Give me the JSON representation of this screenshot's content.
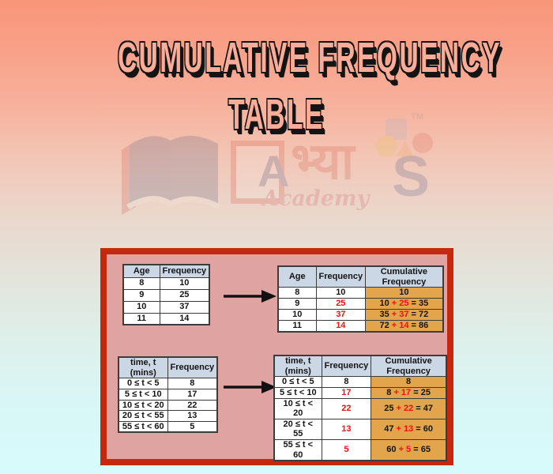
{
  "title": {
    "line1": "CUMULATIVE FREQUENCY",
    "line2": "TABLE"
  },
  "watermark": {
    "letter_a": "A",
    "devanagari": "भ्या",
    "letter_s": "S",
    "academy": "Academy",
    "tm": "TM"
  },
  "tables": [
    {
      "name": "age-frequency-table",
      "headers": [
        "Age",
        "Frequency"
      ],
      "rows": [
        [
          "8",
          "10"
        ],
        [
          "9",
          "25"
        ],
        [
          "10",
          "37"
        ],
        [
          "11",
          "14"
        ]
      ]
    },
    {
      "name": "age-cumulative-frequency-table",
      "headers": [
        "Age",
        "Frequency",
        "Cumulative\nFrequency"
      ],
      "rows": [
        [
          "8",
          "10",
          {
            "bg": true,
            "parts": [
              {
                "t": "10"
              }
            ]
          }
        ],
        [
          "9",
          {
            "red": true,
            "t": "25"
          },
          {
            "bg": true,
            "parts": [
              {
                "t": "10 "
              },
              {
                "t": "+ 25",
                "red": true
              },
              {
                "t": " = 35"
              }
            ]
          }
        ],
        [
          "10",
          {
            "red": true,
            "t": "37"
          },
          {
            "bg": true,
            "parts": [
              {
                "t": "35 "
              },
              {
                "t": "+ 37",
                "red": true
              },
              {
                "t": " = 72"
              }
            ]
          }
        ],
        [
          "11",
          {
            "red": true,
            "t": "14"
          },
          {
            "bg": true,
            "parts": [
              {
                "t": "72 "
              },
              {
                "t": "+ 14",
                "red": true
              },
              {
                "t": " = 86"
              }
            ]
          }
        ]
      ]
    },
    {
      "name": "time-frequency-table",
      "headers": [
        "time, t\n(mins)",
        "Frequency"
      ],
      "rows": [
        [
          "0 ≤ t < 5",
          "8"
        ],
        [
          "5 ≤ t < 10",
          "17"
        ],
        [
          "10 ≤ t < 20",
          "22"
        ],
        [
          "20 ≤ t < 55",
          "13"
        ],
        [
          "55 ≤ t < 60",
          "5"
        ]
      ]
    },
    {
      "name": "time-cumulative-frequency-table",
      "headers": [
        "time, t\n(mins)",
        "Frequency",
        "Cumulative\nFrequency"
      ],
      "rows": [
        [
          "0 ≤ t < 5",
          "8",
          {
            "bg": true,
            "parts": [
              {
                "t": "8"
              }
            ]
          }
        ],
        [
          "5 ≤ t < 10",
          {
            "red": true,
            "t": "17"
          },
          {
            "bg": true,
            "parts": [
              {
                "t": "8 "
              },
              {
                "t": "+ 17",
                "red": true
              },
              {
                "t": " = 25"
              }
            ]
          }
        ],
        [
          "10 ≤ t < 20",
          {
            "red": true,
            "t": "22"
          },
          {
            "bg": true,
            "parts": [
              {
                "t": "25 "
              },
              {
                "t": "+ 22",
                "red": true
              },
              {
                "t": " = 47"
              }
            ]
          }
        ],
        [
          "20 ≤ t < 55",
          {
            "red": true,
            "t": "13"
          },
          {
            "bg": true,
            "parts": [
              {
                "t": "47 "
              },
              {
                "t": "+ 13",
                "red": true
              },
              {
                "t": " = 60"
              }
            ]
          }
        ],
        [
          "55 ≤ t < 60",
          {
            "red": true,
            "t": "5"
          },
          {
            "bg": true,
            "parts": [
              {
                "t": "60 "
              },
              {
                "t": "+ 5",
                "red": true
              },
              {
                "t": " = 65"
              }
            ]
          }
        ]
      ]
    }
  ],
  "colors": {
    "background_top": "#f89579",
    "background_bottom": "#d7fbfc",
    "panel_border_red": "#c5290d",
    "panel_fill_pink": "#dfa3a1",
    "table_header_blue": "#ccd7e6",
    "highlight_orange": "#e2a54b",
    "value_red": "#f01111",
    "title_fill": "#f9ac97",
    "title_outline": "#141414"
  }
}
